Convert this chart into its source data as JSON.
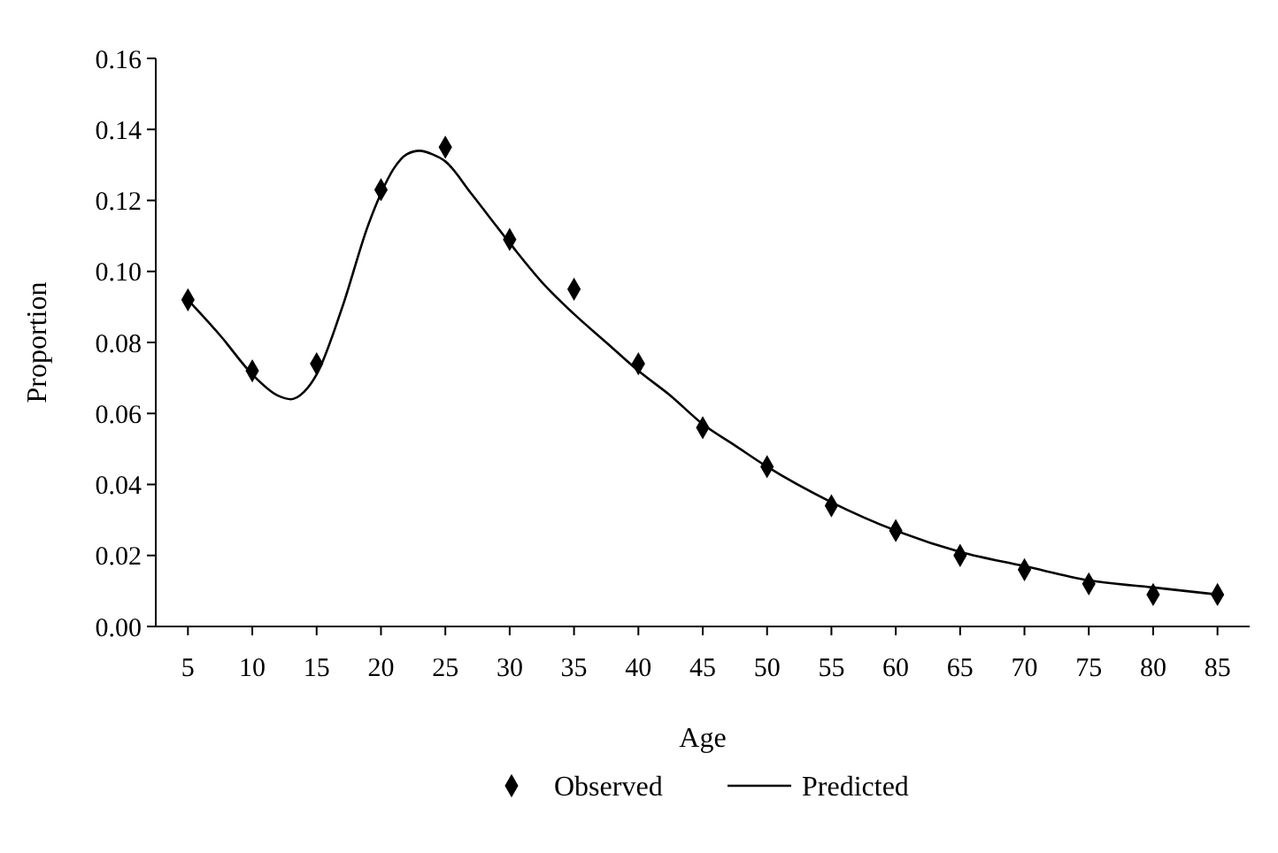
{
  "chart_data": {
    "type": "scatter",
    "xlabel": "Age",
    "ylabel": "Proportion",
    "legend": "bottom",
    "grid": false,
    "xlim": [
      2.5,
      87.5
    ],
    "xticks": [
      5,
      10,
      15,
      20,
      25,
      30,
      35,
      40,
      45,
      50,
      55,
      60,
      65,
      70,
      75,
      80,
      85
    ],
    "ylim": [
      0,
      0.16
    ],
    "yticks": [
      {
        "value": 0,
        "label": "0.00"
      },
      {
        "value": 0.02,
        "label": "0.02"
      },
      {
        "value": 0.04,
        "label": "0.04"
      },
      {
        "value": 0.06,
        "label": "0.06"
      },
      {
        "value": 0.08,
        "label": "0.08"
      },
      {
        "value": 0.1,
        "label": "0.10"
      },
      {
        "value": 0.12,
        "label": "0.12"
      },
      {
        "value": 0.14,
        "label": "0.14"
      },
      {
        "value": 0.16,
        "label": "0.16"
      }
    ],
    "series": [
      {
        "name": "Observed",
        "marker": "diamond",
        "color": "#000000",
        "x": [
          5,
          10,
          15,
          20,
          25,
          30,
          35,
          40,
          45,
          50,
          55,
          60,
          65,
          70,
          75,
          80,
          85
        ],
        "values": [
          0.092,
          0.072,
          0.074,
          0.123,
          0.135,
          0.109,
          0.095,
          0.074,
          0.056,
          0.045,
          0.034,
          0.027,
          0.02,
          0.016,
          0.012,
          0.009,
          0.009
        ]
      },
      {
        "name": "Predicted",
        "type": "line",
        "marker": "none",
        "line_style": "solid",
        "color": "#000000",
        "x": [
          5,
          7.5,
          10,
          12,
          13,
          14,
          15,
          17,
          19,
          20,
          21,
          22,
          23,
          24,
          25,
          27,
          30,
          32.5,
          35,
          37.5,
          40,
          42.5,
          45,
          47.5,
          50,
          55,
          60,
          65,
          70,
          75,
          80,
          85
        ],
        "values": [
          0.092,
          0.082,
          0.071,
          0.065,
          0.064,
          0.066,
          0.071,
          0.09,
          0.113,
          0.122,
          0.129,
          0.133,
          0.134,
          0.133,
          0.131,
          0.122,
          0.108,
          0.097,
          0.088,
          0.08,
          0.072,
          0.065,
          0.057,
          0.051,
          0.045,
          0.035,
          0.027,
          0.021,
          0.017,
          0.013,
          0.011,
          0.009
        ]
      }
    ]
  }
}
